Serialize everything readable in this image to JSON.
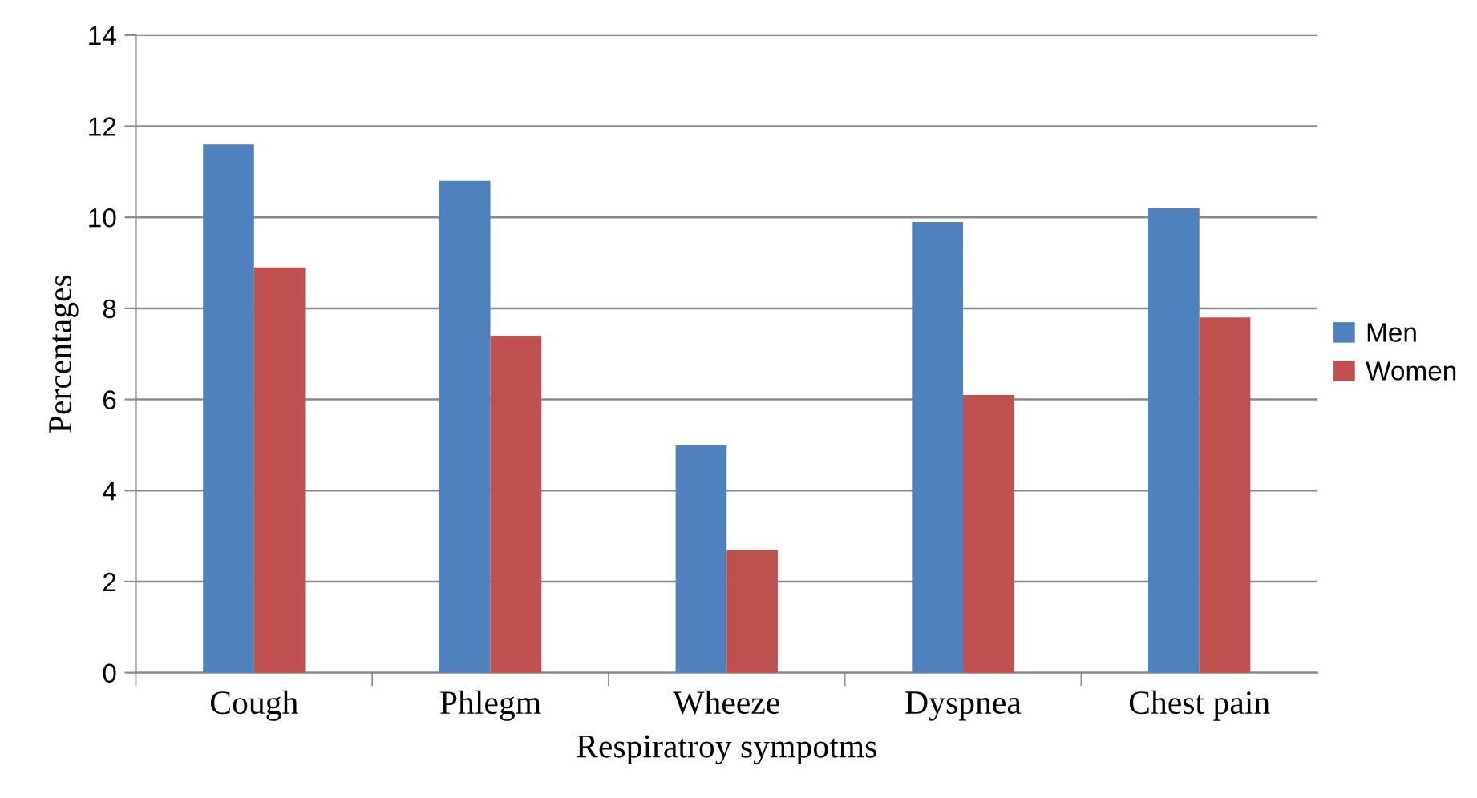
{
  "chart_data": {
    "type": "bar",
    "xlabel": "Respiratroy sympotms",
    "ylabel": "Percentages",
    "categories": [
      "Cough",
      "Phlegm",
      "Wheeze",
      "Dyspnea",
      "Chest pain"
    ],
    "series": [
      {
        "name": "Men",
        "color": "#4f81bd",
        "values": [
          11.6,
          10.8,
          5.0,
          9.9,
          10.2
        ]
      },
      {
        "name": "Women",
        "color": "#c0504d",
        "values": [
          8.9,
          7.4,
          2.7,
          6.1,
          7.8
        ]
      }
    ],
    "ylim": [
      0,
      14
    ],
    "yticks": [
      0,
      2,
      4,
      6,
      8,
      10,
      12,
      14
    ],
    "grid": "y",
    "legend": "right"
  }
}
